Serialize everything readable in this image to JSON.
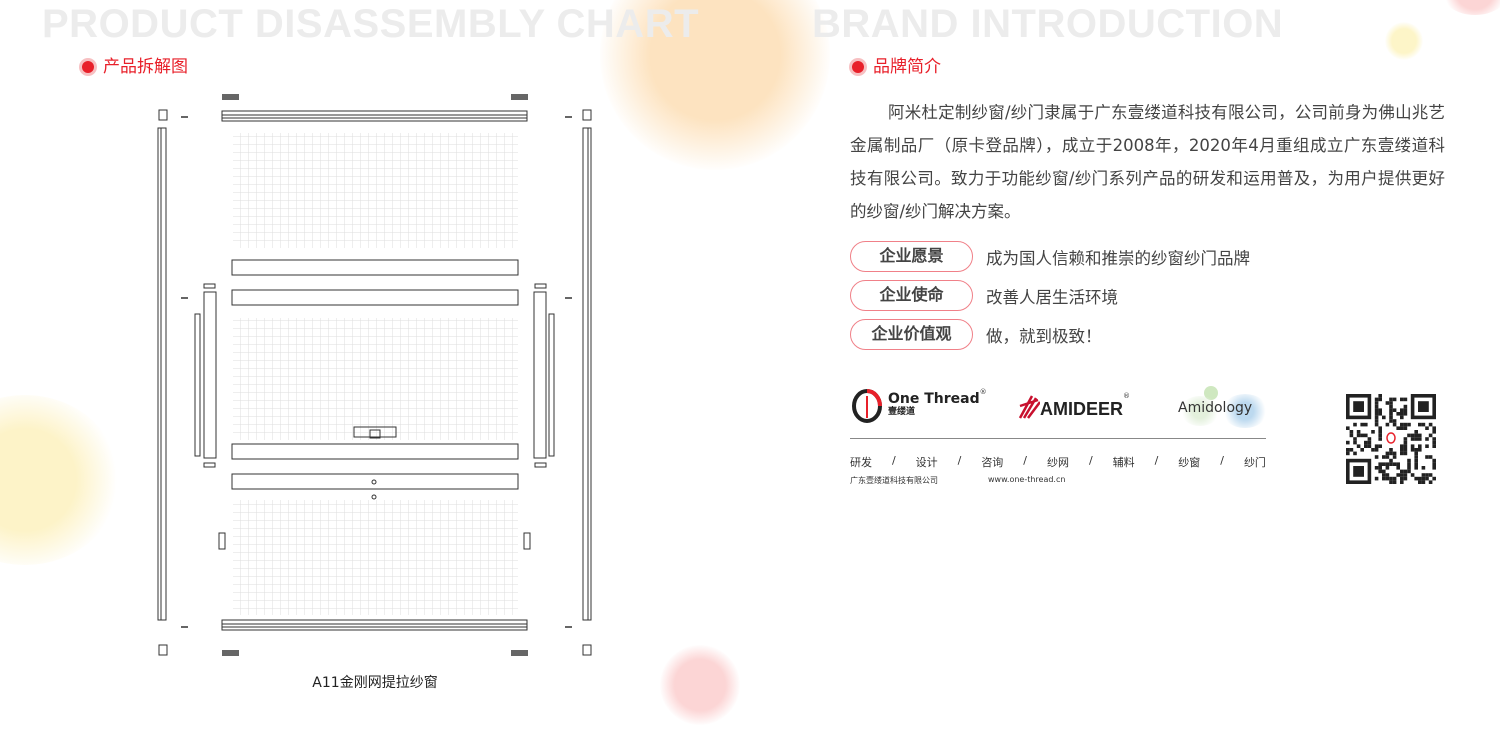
{
  "left": {
    "bg_title": "PRODUCT DISASSEMBLY CHART",
    "section_title": "产品拆解图",
    "caption": "A11金刚网提拉纱窗"
  },
  "right": {
    "bg_title": "BRAND INTRODUCTION",
    "section_title": "品牌简介",
    "intro": "阿米杜定制纱窗/纱门隶属于广东壹缕道科技有限公司，公司前身为佛山兆艺金属制品厂（原卡登品牌），成立于2008年，2020年4月重组成立广东壹缕道科技有限公司。致力于功能纱窗/纱门系列产品的研发和运用普及，为用户提供更好的纱窗/纱门解决方案。",
    "values": [
      {
        "label": "企业愿景",
        "text": "成为国人信赖和推崇的纱窗纱门品牌"
      },
      {
        "label": "企业使命",
        "text": "改善人居生活环境"
      },
      {
        "label": "企业价值观",
        "text": "做，就到极致！"
      }
    ],
    "logos": {
      "one_thread": "One Thread",
      "one_thread_cn": "壹缕道",
      "amideer": "AMIDEER",
      "amidology": "Amidology"
    },
    "services": [
      "研发",
      "/",
      "设计",
      "/",
      "咨询",
      "/",
      "纱网",
      "/",
      "辅料",
      "/",
      "纱窗",
      "/",
      "纱门"
    ],
    "company": "广东壹缕道科技有限公司",
    "website": "www.one-thread.cn"
  },
  "colors": {
    "accent": "#e8202a",
    "pill_border": "#f08088"
  }
}
